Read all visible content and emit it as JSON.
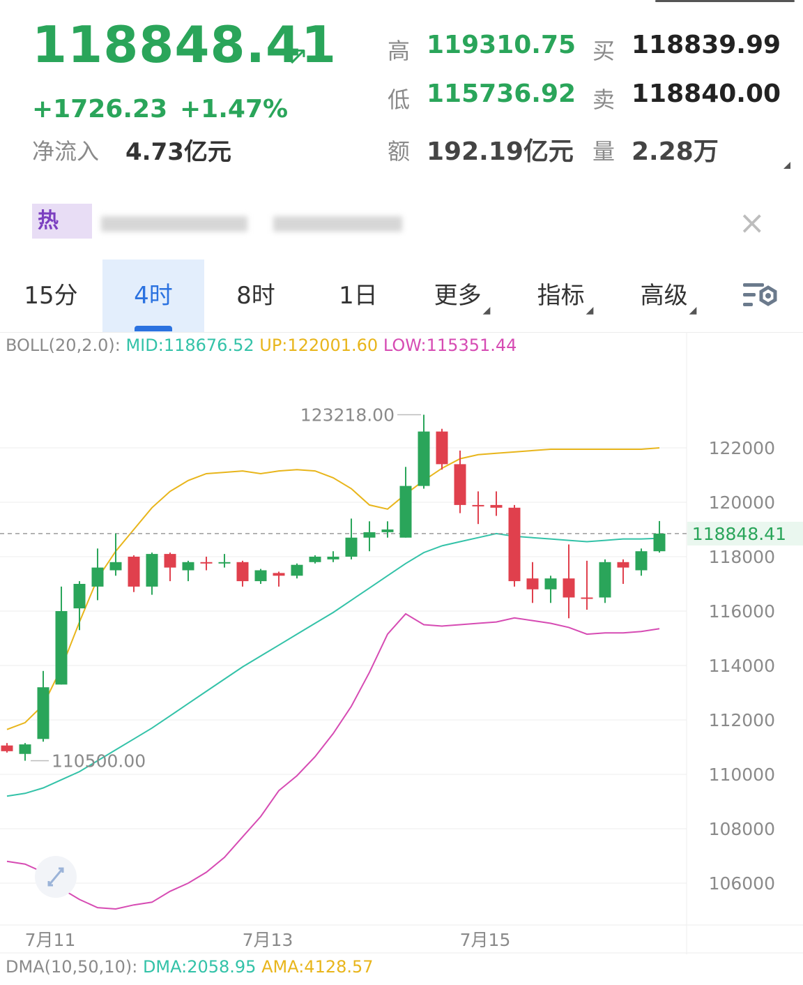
{
  "quote": {
    "price": "118848.41",
    "arrow": "↗",
    "change": "+1726.23",
    "change_pct": "+1.47%",
    "inflow_label": "净流入",
    "inflow_value": "4.73亿元",
    "high_label": "高",
    "high_value": "119310.75",
    "low_label": "低",
    "low_value": "115736.92",
    "amount_label": "额",
    "amount_value": "192.19亿元",
    "buy_label": "买",
    "buy_value": "118839.99",
    "sell_label": "卖",
    "sell_value": "118840.00",
    "volume_label": "量",
    "volume_value": "2.28万"
  },
  "banner": {
    "tag": "热",
    "close_icon": "×"
  },
  "tabs": [
    {
      "label": "15分",
      "active": false,
      "dropdown": false
    },
    {
      "label": "4时",
      "active": true,
      "dropdown": false
    },
    {
      "label": "8时",
      "active": false,
      "dropdown": false
    },
    {
      "label": "1日",
      "active": false,
      "dropdown": false
    },
    {
      "label": "更多",
      "active": false,
      "dropdown": true
    },
    {
      "label": "指标",
      "active": false,
      "dropdown": true
    },
    {
      "label": "高级",
      "active": false,
      "dropdown": true
    }
  ],
  "settings_icon": "chart-settings-icon",
  "boll_legend": {
    "name": "BOLL(20,2.0):",
    "mid": "MID:118676.52",
    "up": "UP:122001.60",
    "low": "LOW:115351.44"
  },
  "dma_legend": {
    "name": "DMA(10,50,10):",
    "dma": "DMA:2058.95",
    "ama": "AMA:4128.57"
  },
  "colors": {
    "up_candle": "#2aa55a",
    "down_candle": "#e0404d",
    "boll_mid": "#33c2a8",
    "boll_up": "#e8b51b",
    "boll_low": "#d64bb3",
    "active_tab": "#2b72e0",
    "current_price_tag": "#2aa55a"
  },
  "chart_data": {
    "type": "candlestick",
    "y_ticks": [
      122000,
      120000,
      118000,
      116000,
      114000,
      112000,
      110000,
      108000,
      106000
    ],
    "ylim": [
      104600,
      124600
    ],
    "x_ticks": [
      "7月11",
      "7月13",
      "7月15"
    ],
    "x_tick_candle_index": [
      2,
      14,
      26
    ],
    "current_price": "118848.41",
    "annotations": {
      "max": "123218.00",
      "min": "110500.00"
    },
    "candles": [
      {
        "o": 111060,
        "c": 110850,
        "h": 111150,
        "l": 110800
      },
      {
        "o": 110750,
        "c": 111100,
        "h": 111150,
        "l": 110500
      },
      {
        "o": 111300,
        "c": 113200,
        "h": 113800,
        "l": 111200
      },
      {
        "o": 113300,
        "c": 116000,
        "h": 116900,
        "l": 113300
      },
      {
        "o": 116100,
        "c": 117000,
        "h": 117100,
        "l": 115300
      },
      {
        "o": 116900,
        "c": 117600,
        "h": 118300,
        "l": 116400
      },
      {
        "o": 117500,
        "c": 117800,
        "h": 118850,
        "l": 117300
      },
      {
        "o": 118000,
        "c": 116900,
        "h": 118050,
        "l": 116700
      },
      {
        "o": 116900,
        "c": 118100,
        "h": 118150,
        "l": 116600
      },
      {
        "o": 118100,
        "c": 117600,
        "h": 118150,
        "l": 117100
      },
      {
        "o": 117500,
        "c": 117800,
        "h": 117850,
        "l": 117100
      },
      {
        "o": 117800,
        "c": 117780,
        "h": 118000,
        "l": 117500
      },
      {
        "o": 117780,
        "c": 117800,
        "h": 118100,
        "l": 117600
      },
      {
        "o": 117800,
        "c": 117100,
        "h": 117850,
        "l": 116900
      },
      {
        "o": 117100,
        "c": 117500,
        "h": 117550,
        "l": 117000
      },
      {
        "o": 117400,
        "c": 117300,
        "h": 117450,
        "l": 116900
      },
      {
        "o": 117300,
        "c": 117700,
        "h": 117750,
        "l": 117200
      },
      {
        "o": 117800,
        "c": 118000,
        "h": 118050,
        "l": 117750
      },
      {
        "o": 117900,
        "c": 118000,
        "h": 118200,
        "l": 117800
      },
      {
        "o": 118000,
        "c": 118700,
        "h": 119400,
        "l": 117900
      },
      {
        "o": 118700,
        "c": 118900,
        "h": 119300,
        "l": 118200
      },
      {
        "o": 118900,
        "c": 119000,
        "h": 119300,
        "l": 118700
      },
      {
        "o": 118700,
        "c": 120600,
        "h": 121300,
        "l": 118700
      },
      {
        "o": 120600,
        "c": 122600,
        "h": 123218,
        "l": 120500
      },
      {
        "o": 122600,
        "c": 121400,
        "h": 122700,
        "l": 121200
      },
      {
        "o": 121400,
        "c": 119900,
        "h": 121900,
        "l": 119600
      },
      {
        "o": 119900,
        "c": 119850,
        "h": 120400,
        "l": 119200
      },
      {
        "o": 119900,
        "c": 119800,
        "h": 120400,
        "l": 119500
      },
      {
        "o": 119800,
        "c": 117100,
        "h": 119900,
        "l": 116900
      },
      {
        "o": 117200,
        "c": 116800,
        "h": 117800,
        "l": 116300
      },
      {
        "o": 116800,
        "c": 117200,
        "h": 117300,
        "l": 116300
      },
      {
        "o": 117200,
        "c": 116500,
        "h": 118450,
        "l": 115736
      },
      {
        "o": 116500,
        "c": 116450,
        "h": 117850,
        "l": 116050
      },
      {
        "o": 116500,
        "c": 117800,
        "h": 117900,
        "l": 116300
      },
      {
        "o": 117800,
        "c": 117600,
        "h": 117900,
        "l": 117000
      },
      {
        "o": 117500,
        "c": 118200,
        "h": 118300,
        "l": 117300
      },
      {
        "o": 118200,
        "c": 118848,
        "h": 119310,
        "l": 118150
      }
    ],
    "boll_up": [
      111650,
      111900,
      112550,
      113900,
      115600,
      117200,
      118200,
      119000,
      119800,
      120400,
      120800,
      121050,
      121100,
      121150,
      121050,
      121150,
      121200,
      121150,
      120900,
      120500,
      119900,
      119750,
      120300,
      120800,
      121250,
      121600,
      121750,
      121800,
      121850,
      121900,
      121950,
      121950,
      121950,
      121950,
      121950,
      121950,
      122001
    ],
    "boll_mid": [
      109200,
      109300,
      109500,
      109800,
      110100,
      110500,
      110900,
      111300,
      111700,
      112150,
      112600,
      113050,
      113500,
      113950,
      114350,
      114750,
      115150,
      115550,
      115950,
      116400,
      116850,
      117300,
      117750,
      118150,
      118400,
      118550,
      118700,
      118850,
      118750,
      118700,
      118650,
      118600,
      118550,
      118600,
      118650,
      118650,
      118676
    ],
    "boll_low": [
      106800,
      106700,
      106400,
      105800,
      105400,
      105100,
      105050,
      105200,
      105300,
      105700,
      106000,
      106400,
      106950,
      107700,
      108450,
      109400,
      109950,
      110650,
      111500,
      112500,
      113750,
      115150,
      115900,
      115500,
      115450,
      115500,
      115550,
      115600,
      115750,
      115650,
      115550,
      115400,
      115150,
      115200,
      115200,
      115250,
      115351
    ]
  }
}
